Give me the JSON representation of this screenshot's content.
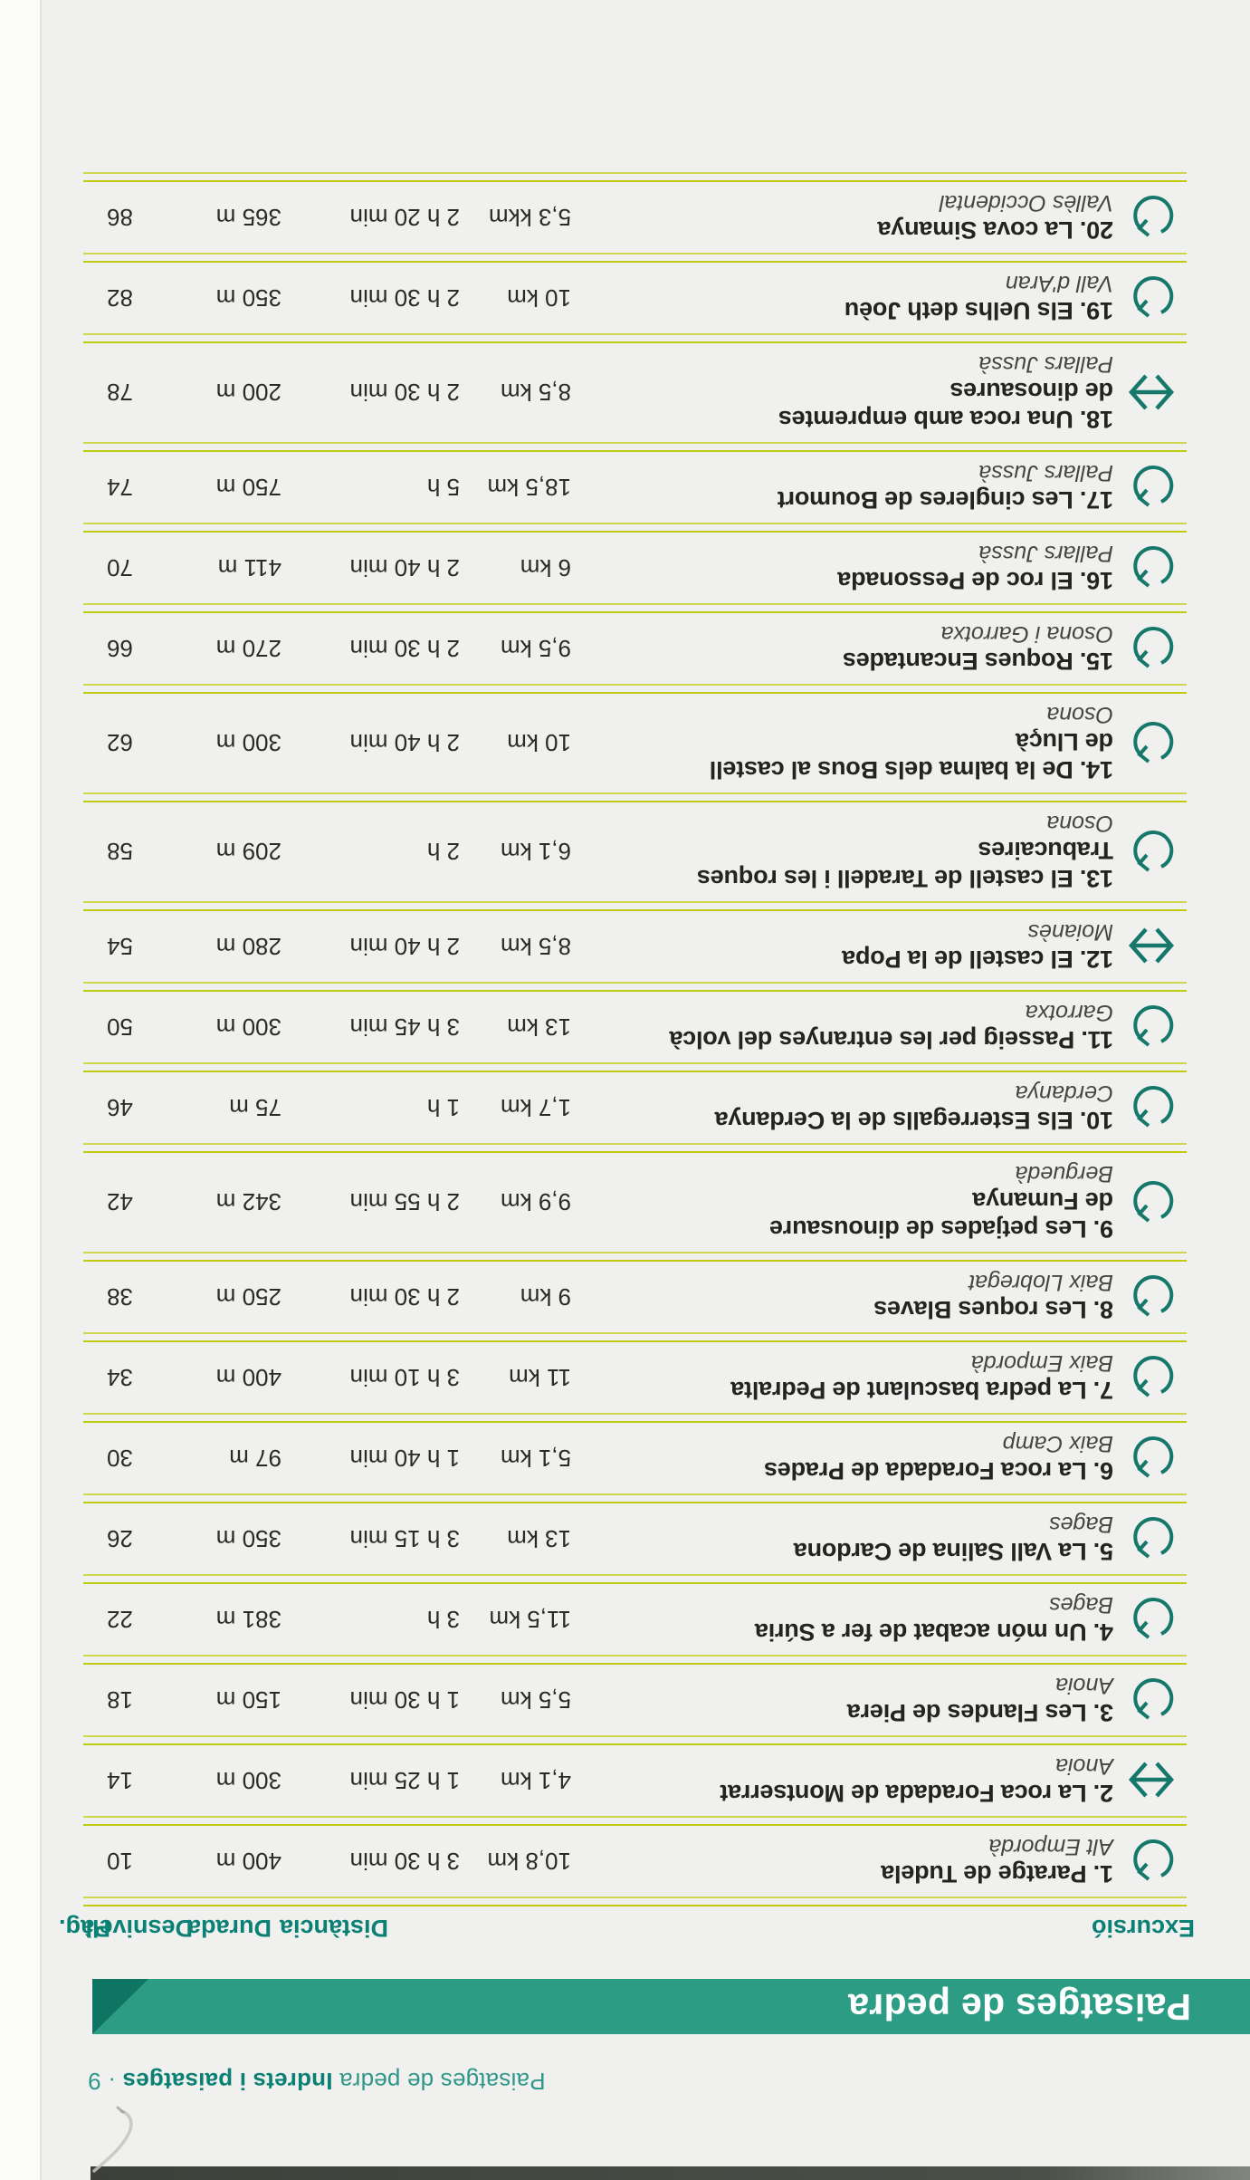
{
  "page": {
    "running_header": {
      "regular": "Paisatges de pedra ",
      "bold": "Indrets i paisatges",
      "page_ref": " · 9"
    },
    "banner": {
      "title": "Paisatges de pedra"
    },
    "columns": {
      "excursio": "Excursió",
      "distancia": "Distància",
      "durada": "Durada",
      "desnivell": "Desnivell",
      "pag": "Pàg."
    },
    "colors": {
      "banner_teal": "#2c9c85",
      "banner_end_dark_teal": "#0f7462",
      "header_teal": "#0b8074",
      "separator_chartreuse": "#bfca10",
      "icon_teal": "#15786b",
      "text_black": "#232321",
      "paper": "#f0f1ef"
    },
    "rows": [
      {
        "title": "1. Paratge de Tudela",
        "title2": "",
        "region": "Alt Empordà",
        "dist": "10,8 km",
        "time": "3 h 30 min",
        "elev": "400 m",
        "pag": "10",
        "icon": "loop"
      },
      {
        "title": "2. La roca Foradada de Montserrat",
        "title2": "",
        "region": "Anoia",
        "dist": "4,1 km",
        "time": "1 h 25 min",
        "elev": "300 m",
        "pag": "14",
        "icon": "linear"
      },
      {
        "title": "3. Les Flandes de Piera",
        "title2": "",
        "region": "Anoia",
        "dist": "5,5 km",
        "time": "1 h 30 min",
        "elev": "150 m",
        "pag": "18",
        "icon": "loop"
      },
      {
        "title": "4. Un món acabat de fer a Súria",
        "title2": "",
        "region": "Bages",
        "dist": "11,5 km",
        "time": "3 h",
        "elev": "381 m",
        "pag": "22",
        "icon": "loop"
      },
      {
        "title": "5. La Vall Salina de Cardona",
        "title2": "",
        "region": "Bages",
        "dist": "13 km",
        "time": "3 h 15 min",
        "elev": "350 m",
        "pag": "26",
        "icon": "loop"
      },
      {
        "title": "6. La roca Foradada de Prades",
        "title2": "",
        "region": "Baix Camp",
        "dist": "5,1 km",
        "time": "1 h 40 min",
        "elev": "97 m",
        "pag": "30",
        "icon": "loop"
      },
      {
        "title": "7. La pedra basculant de Pedralta",
        "title2": "",
        "region": "Baix Empordà",
        "dist": "11 km",
        "time": "3 h 10 min",
        "elev": "400 m",
        "pag": "34",
        "icon": "loop"
      },
      {
        "title": "8. Les roques Blaves",
        "title2": "",
        "region": "Baix Llobregat",
        "dist": "9 km",
        "time": "2 h 30 min",
        "elev": "250 m",
        "pag": "38",
        "icon": "loop"
      },
      {
        "title": "9. Les petjades de dinousaure",
        "title2": "de Fumanya",
        "region": "Berguedà",
        "dist": "9,9 km",
        "time": "2 h 55 min",
        "elev": "342 m",
        "pag": "42",
        "icon": "loop"
      },
      {
        "title": "10. Els Esterregalls de la Cerdanya",
        "title2": "",
        "region": "Cerdanya",
        "dist": "1,7 km",
        "time": "1 h",
        "elev": "75 m",
        "pag": "46",
        "icon": "loop"
      },
      {
        "title": "11. Passeig per les entranyes del volcà",
        "title2": "",
        "region": "Garrotxa",
        "dist": "13 km",
        "time": "3 h 45 min",
        "elev": "300 m",
        "pag": "50",
        "icon": "loop"
      },
      {
        "title": "12. El castell de la Popa",
        "title2": "",
        "region": "Moianès",
        "dist": "8,5 km",
        "time": "2 h 40 min",
        "elev": "280 m",
        "pag": "54",
        "icon": "linear"
      },
      {
        "title": "13. El castell de Taradell i les roques",
        "title2": "Trabucaires",
        "region": "Osona",
        "dist": "6,1 km",
        "time": "2 h",
        "elev": "209 m",
        "pag": "58",
        "icon": "loop"
      },
      {
        "title": "14. De la balma dels Bous al castell",
        "title2": "de Lluçà",
        "region": "Osona",
        "dist": "10 km",
        "time": "2 h 40 min",
        "elev": "300 m",
        "pag": "62",
        "icon": "loop"
      },
      {
        "title": "15. Roques Encantades",
        "title2": "",
        "region": "Osona i Garrotxa",
        "dist": "9,5 km",
        "time": "2 h 30 min",
        "elev": "270 m",
        "pag": "66",
        "icon": "loop"
      },
      {
        "title": "16. El roc de Pessonada",
        "title2": "",
        "region": "Pallars Jussà",
        "dist": "6 km",
        "time": "2 h 40 min",
        "elev": "411 m",
        "pag": "70",
        "icon": "loop"
      },
      {
        "title": "17. Les cingleres de Boumort",
        "title2": "",
        "region": "Pallars Jussà",
        "dist": "18,5 km",
        "time": "5 h",
        "elev": "750 m",
        "pag": "74",
        "icon": "loop"
      },
      {
        "title": "18. Una roca amb empremtes",
        "title2": "de dinosaures",
        "region": "Pallars Jussà",
        "dist": "8,5 km",
        "time": "2 h 30 min",
        "elev": "200 m",
        "pag": "78",
        "icon": "linear"
      },
      {
        "title": "19. Els Uelhs deth Joèu",
        "title2": "",
        "region": "Vall d'Aran",
        "dist": "10 km",
        "time": "2 h 30 min",
        "elev": "350 m",
        "pag": "82",
        "icon": "loop"
      },
      {
        "title": "20. La cova Simanya",
        "title2": "",
        "region": "Vallès Occidental",
        "dist": "5,3 kkm",
        "time": "2 h 20 min",
        "elev": "365 m",
        "pag": "86",
        "icon": "loop"
      }
    ]
  }
}
